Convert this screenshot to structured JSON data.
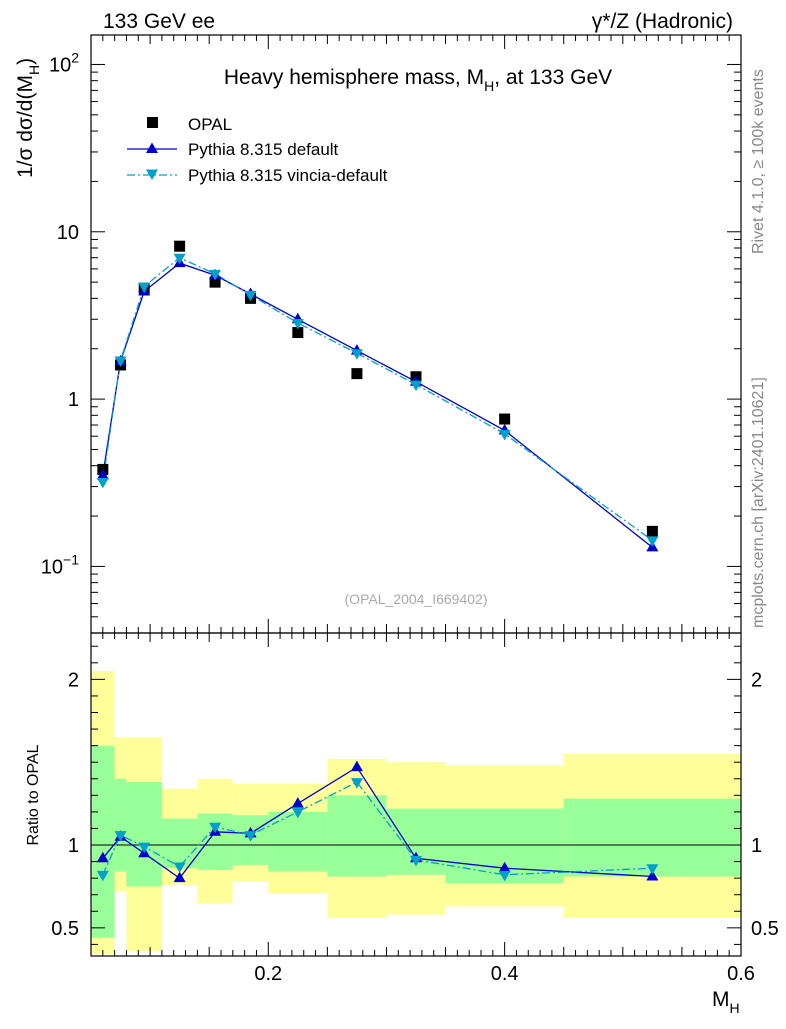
{
  "header": {
    "left": "133 GeV ee",
    "right": "γ*/Z (Hadronic)"
  },
  "side_labels": {
    "rivet": "Rivet 4.1.0, ≥ 100k events",
    "mcplots": "mcplots.cern.ch [arXiv:2401.10621]"
  },
  "chart_data": [
    {
      "type": "scatter",
      "panel": "main",
      "title": "Heavy hemisphere mass, M_H, at 133 GeV",
      "title_parts": {
        "a": "Heavy hemisphere mass, M",
        "sub": "H",
        "b": ", at 133 GeV"
      },
      "ylabel": "1/σ  dσ/d(M_H)",
      "ylabel_parts": {
        "a": "1/σ  dσ/d(M",
        "sub": "H",
        "b": ")"
      },
      "yscale": "log",
      "xlim": [
        0.05,
        0.6
      ],
      "ylim": [
        0.04,
        150
      ],
      "yticks": [
        {
          "value": 0.1,
          "base": "10",
          "exp": "−1"
        },
        {
          "value": 1,
          "label": "1"
        },
        {
          "value": 10,
          "label": "10"
        },
        {
          "value": 100,
          "base": "10",
          "exp": "2"
        }
      ],
      "watermark": "(OPAL_2004_I669402)",
      "legend_position": "top-left",
      "series": [
        {
          "name": "OPAL",
          "color": "#000000",
          "marker": "square",
          "x": [
            0.06,
            0.075,
            0.095,
            0.125,
            0.155,
            0.185,
            0.225,
            0.275,
            0.325,
            0.4,
            0.525
          ],
          "y": [
            0.38,
            1.6,
            4.6,
            8.2,
            5.0,
            4.0,
            2.5,
            1.42,
            1.36,
            0.76,
            0.162
          ]
        },
        {
          "name": "Pythia 8.315 default",
          "color": "#0000cc",
          "marker": "triangle-up",
          "line": "solid",
          "x": [
            0.06,
            0.075,
            0.095,
            0.125,
            0.155,
            0.185,
            0.225,
            0.275,
            0.325,
            0.4,
            0.525
          ],
          "y": [
            0.35,
            1.68,
            4.4,
            6.5,
            5.5,
            4.25,
            3.0,
            1.95,
            1.27,
            0.65,
            0.13
          ]
        },
        {
          "name": "Pythia 8.315 vincia-default",
          "color": "#00a0c8",
          "marker": "triangle-down",
          "line": "dashdot",
          "x": [
            0.06,
            0.075,
            0.095,
            0.125,
            0.155,
            0.185,
            0.225,
            0.275,
            0.325,
            0.4,
            0.525
          ],
          "y": [
            0.32,
            1.7,
            4.7,
            7.0,
            5.6,
            4.2,
            2.85,
            1.88,
            1.22,
            0.62,
            0.143
          ]
        }
      ]
    },
    {
      "type": "scatter",
      "panel": "ratio",
      "xlabel": "M_H",
      "xlabel_parts": {
        "a": "M",
        "sub": "H"
      },
      "ylabel": "Ratio to OPAL",
      "xlim": [
        0.05,
        0.6
      ],
      "ylim": [
        0.33,
        2.28
      ],
      "xticks": [
        {
          "value": 0.2,
          "label": "0.2"
        },
        {
          "value": 0.4,
          "label": "0.4"
        },
        {
          "value": 0.6,
          "label": "0.6"
        }
      ],
      "yticks": [
        {
          "value": 0.5,
          "label": "0.5"
        },
        {
          "value": 1,
          "label": "1"
        },
        {
          "value": 2,
          "label": "2"
        }
      ],
      "bands": [
        {
          "x0": 0.05,
          "x1": 0.07,
          "yellow": [
            0.34,
            2.05
          ],
          "green": [
            0.44,
            1.6
          ]
        },
        {
          "x0": 0.07,
          "x1": 0.08,
          "yellow": [
            0.72,
            1.65
          ],
          "green": [
            0.84,
            1.4
          ]
        },
        {
          "x0": 0.08,
          "x1": 0.11,
          "yellow": [
            0.36,
            1.65
          ],
          "green": [
            0.75,
            1.38
          ]
        },
        {
          "x0": 0.11,
          "x1": 0.14,
          "yellow": [
            0.76,
            1.34
          ],
          "green": [
            0.86,
            1.16
          ]
        },
        {
          "x0": 0.14,
          "x1": 0.17,
          "yellow": [
            0.65,
            1.4
          ],
          "green": [
            0.85,
            1.19
          ]
        },
        {
          "x0": 0.17,
          "x1": 0.2,
          "yellow": [
            0.78,
            1.37
          ],
          "green": [
            0.88,
            1.18
          ]
        },
        {
          "x0": 0.2,
          "x1": 0.25,
          "yellow": [
            0.71,
            1.37
          ],
          "green": [
            0.84,
            1.2
          ]
        },
        {
          "x0": 0.25,
          "x1": 0.3,
          "yellow": [
            0.56,
            1.52
          ],
          "green": [
            0.81,
            1.3
          ]
        },
        {
          "x0": 0.3,
          "x1": 0.35,
          "yellow": [
            0.58,
            1.5
          ],
          "green": [
            0.82,
            1.22
          ]
        },
        {
          "x0": 0.35,
          "x1": 0.45,
          "yellow": [
            0.63,
            1.48
          ],
          "green": [
            0.77,
            1.22
          ]
        },
        {
          "x0": 0.45,
          "x1": 0.6,
          "yellow": [
            0.56,
            1.55
          ],
          "green": [
            0.81,
            1.28
          ]
        }
      ],
      "series": [
        {
          "name": "Pythia 8.315 default",
          "color": "#0000cc",
          "marker": "triangle-up",
          "line": "solid",
          "x": [
            0.06,
            0.075,
            0.095,
            0.125,
            0.155,
            0.185,
            0.225,
            0.275,
            0.325,
            0.4,
            0.525
          ],
          "y": [
            0.92,
            1.05,
            0.95,
            0.8,
            1.08,
            1.07,
            1.25,
            1.47,
            0.92,
            0.86,
            0.81
          ]
        },
        {
          "name": "Pythia 8.315 vincia-default",
          "color": "#00a0c8",
          "marker": "triangle-down",
          "line": "dashdot",
          "x": [
            0.06,
            0.075,
            0.095,
            0.125,
            0.155,
            0.185,
            0.225,
            0.275,
            0.325,
            0.4,
            0.525
          ],
          "y": [
            0.82,
            1.06,
            0.99,
            0.87,
            1.11,
            1.06,
            1.2,
            1.38,
            0.91,
            0.82,
            0.86
          ]
        }
      ]
    }
  ]
}
